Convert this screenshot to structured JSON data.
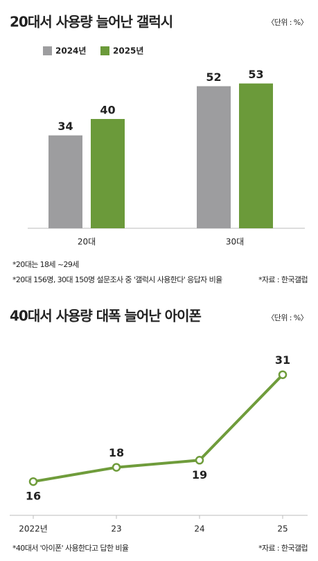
{
  "chart_data": [
    {
      "type": "bar",
      "title": "20대서 사용량 늘어난 갤럭시",
      "unit": "〈단위 : %〉",
      "categories": [
        "20대",
        "30대"
      ],
      "series": [
        {
          "name": "2024년",
          "color": "#9d9d9f",
          "values": [
            34,
            52
          ]
        },
        {
          "name": "2025년",
          "color": "#6b9a3a",
          "values": [
            40,
            53
          ]
        }
      ],
      "notes": [
        "*20대는 18세 ~29세",
        "*20대 156명, 30대 150명 설문조사 중 '갤럭시 사용한다' 응답자 비율"
      ],
      "source": "*자료 : 한국갤럽"
    },
    {
      "type": "line",
      "title": "40대서 사용량 대폭 늘어난 아이폰",
      "unit": "〈단위 : %〉",
      "categories": [
        "2022년",
        "23",
        "24",
        "25"
      ],
      "values": [
        16,
        18,
        19,
        31
      ],
      "color": "#6f9c3b",
      "note": "*40대서 '아이폰' 사용한다고 답한 비율",
      "source": "*자료 : 한국갤럽"
    }
  ]
}
